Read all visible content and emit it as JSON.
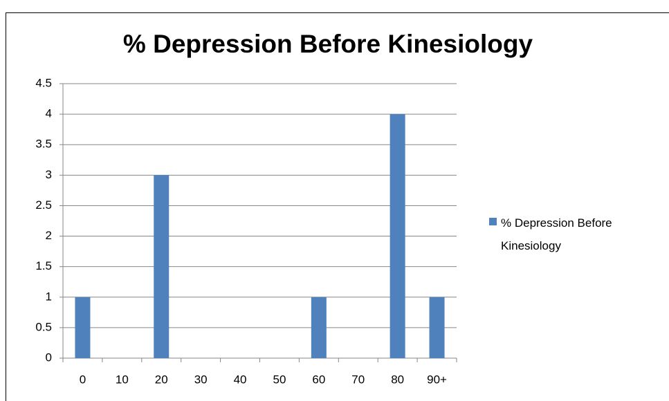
{
  "chart_data": {
    "type": "bar",
    "title": "% Depression Before Kinesiology",
    "categories": [
      "0",
      "10",
      "20",
      "30",
      "40",
      "50",
      "60",
      "70",
      "80",
      "90+"
    ],
    "series": [
      {
        "name": "% Depression Before Kinesiology",
        "color": "#4f81bd",
        "values": [
          1,
          0,
          3,
          0,
          0,
          0,
          1,
          0,
          4,
          1
        ]
      }
    ],
    "ylim": [
      0,
      4.5
    ],
    "yticks": [
      0,
      0.5,
      1,
      1.5,
      2,
      2.5,
      3,
      3.5,
      4,
      4.5
    ],
    "grid": true,
    "legend": "right"
  }
}
